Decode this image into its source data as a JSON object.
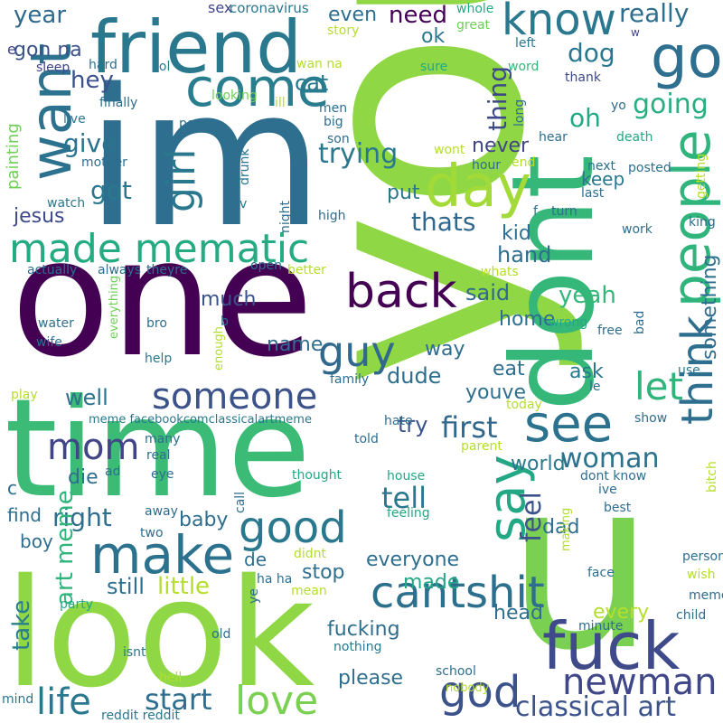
{
  "palette": {
    "dark_purple": "#440154",
    "purple": "#482878",
    "indigo": "#3e4989",
    "blue": "#31688e",
    "teal_blue": "#26828e",
    "teal": "#1f9e89",
    "green_teal": "#35b779",
    "green": "#6ece58",
    "lime": "#b5de2b",
    "yellow": "#fde725"
  },
  "words": [
    {
      "text": "youre",
      "color": "#8fd744"
    },
    {
      "text": "im",
      "color": "#2e6e8e"
    },
    {
      "text": "one",
      "color": "#440154"
    },
    {
      "text": "time",
      "color": "#3bbb75"
    },
    {
      "text": "look",
      "color": "#8fd744"
    },
    {
      "text": "dont",
      "color": "#35b779"
    },
    {
      "text": "u",
      "color": "#7ad151"
    },
    {
      "text": "friend",
      "color": "#2a788e"
    },
    {
      "text": "want",
      "color": "#2c728e"
    },
    {
      "text": "go",
      "color": "#2e6e8e"
    },
    {
      "text": "come",
      "color": "#287d8e"
    },
    {
      "text": "day",
      "color": "#a2da37"
    },
    {
      "text": "know",
      "color": "#2a788e"
    },
    {
      "text": "people",
      "color": "#2fb47c"
    },
    {
      "text": "made mematic",
      "color": "#25ab82"
    },
    {
      "text": "girl",
      "color": "#2a788e"
    },
    {
      "text": "back",
      "color": "#440154"
    },
    {
      "text": "see",
      "color": "#2c728e"
    },
    {
      "text": "think",
      "color": "#2e6e8e"
    },
    {
      "text": "say",
      "color": "#22a884"
    },
    {
      "text": "guy",
      "color": "#31688e"
    },
    {
      "text": "someone",
      "color": "#3b528b"
    },
    {
      "text": "mom",
      "color": "#414487"
    },
    {
      "text": "make",
      "color": "#2c728e"
    },
    {
      "text": "good",
      "color": "#2a788e"
    },
    {
      "text": "cantshit",
      "color": "#2d708e"
    },
    {
      "text": "fuck",
      "color": "#3e4a89"
    },
    {
      "text": "newman",
      "color": "#3f4788"
    },
    {
      "text": "god",
      "color": "#3b528b"
    },
    {
      "text": "life",
      "color": "#2a788e"
    },
    {
      "text": "love",
      "color": "#7ad151"
    },
    {
      "text": "start",
      "color": "#2e6e8e"
    },
    {
      "text": "classical art",
      "color": "#3b528b"
    },
    {
      "text": "let",
      "color": "#2fb47c"
    },
    {
      "text": "tell",
      "color": "#2a788e"
    },
    {
      "text": "right",
      "color": "#2e6e8e"
    },
    {
      "text": "first",
      "color": "#31688e"
    },
    {
      "text": "woman",
      "color": "#2c728e"
    },
    {
      "text": "feel",
      "color": "#3b528b"
    },
    {
      "text": "art meme",
      "color": "#2fb47c"
    },
    {
      "text": "take",
      "color": "#287d8e"
    },
    {
      "text": "got",
      "color": "#2a788e"
    },
    {
      "text": "give",
      "color": "#2c728e"
    },
    {
      "text": "trying",
      "color": "#2a788e"
    },
    {
      "text": "thats",
      "color": "#31688e"
    },
    {
      "text": "oh",
      "color": "#22a884"
    },
    {
      "text": "going",
      "color": "#29af7f"
    },
    {
      "text": "really",
      "color": "#2e6e8e"
    },
    {
      "text": "need",
      "color": "#440154"
    },
    {
      "text": "dog",
      "color": "#2a788e"
    },
    {
      "text": "thing",
      "color": "#3e4989"
    },
    {
      "text": "year",
      "color": "#31688e"
    },
    {
      "text": "hey",
      "color": "#3b528b"
    },
    {
      "text": "cat",
      "color": "#2a788e"
    },
    {
      "text": "gon na",
      "color": "#3b528b"
    },
    {
      "text": "well",
      "color": "#2c728e"
    },
    {
      "text": "dude",
      "color": "#2e6e8e"
    },
    {
      "text": "said",
      "color": "#31688e"
    },
    {
      "text": "yeah",
      "color": "#35b779"
    },
    {
      "text": "hand",
      "color": "#2e6e8e"
    },
    {
      "text": "much",
      "color": "#3b528b"
    },
    {
      "text": "jesus",
      "color": "#3e4989"
    },
    {
      "text": "name",
      "color": "#2e6e8e"
    },
    {
      "text": "way",
      "color": "#2e6e8e"
    },
    {
      "text": "eat",
      "color": "#2e6e8e"
    },
    {
      "text": "youve",
      "color": "#2e6e8e"
    },
    {
      "text": "ask",
      "color": "#2a788e"
    },
    {
      "text": "try",
      "color": "#3b528b"
    },
    {
      "text": "world",
      "color": "#2a788e"
    },
    {
      "text": "home",
      "color": "#2e6e8e"
    },
    {
      "text": "something",
      "color": "#2e6e8e"
    },
    {
      "text": "never",
      "color": "#414487"
    },
    {
      "text": "keep",
      "color": "#2a788e"
    },
    {
      "text": "kid",
      "color": "#2e6e8e"
    },
    {
      "text": "put",
      "color": "#2a788e"
    },
    {
      "text": "ok",
      "color": "#2a788e"
    },
    {
      "text": "even",
      "color": "#2e6e8e"
    },
    {
      "text": "die",
      "color": "#2e6e8e"
    },
    {
      "text": "baby",
      "color": "#2e6e8e"
    },
    {
      "text": "still",
      "color": "#2e6e8e"
    },
    {
      "text": "little",
      "color": "#b5de2b"
    },
    {
      "text": "stop",
      "color": "#2e6e8e"
    },
    {
      "text": "everyone",
      "color": "#2e6e8e"
    },
    {
      "text": "made",
      "color": "#22a884"
    },
    {
      "text": "dad",
      "color": "#2e6e8e"
    },
    {
      "text": "every",
      "color": "#b5de2b"
    },
    {
      "text": "head",
      "color": "#2e6e8e"
    },
    {
      "text": "fucking",
      "color": "#2e6e8e"
    },
    {
      "text": "please",
      "color": "#2e6e8e"
    },
    {
      "text": "find",
      "color": "#2e6e8e"
    },
    {
      "text": "boy",
      "color": "#2e6e8e"
    },
    {
      "text": "c",
      "color": "#2e6e8e"
    },
    {
      "text": "de",
      "color": "#2e6e8e"
    },
    {
      "text": "painting",
      "color": "#6ece58"
    },
    {
      "text": "sex",
      "color": "#414487"
    },
    {
      "text": "coronavirus",
      "color": "#2a788e"
    },
    {
      "text": "whole",
      "color": "#22a884"
    },
    {
      "text": "great",
      "color": "#6ece58"
    },
    {
      "text": "story",
      "color": "#b5de2b"
    },
    {
      "text": "wan na",
      "color": "#b5de2b"
    },
    {
      "text": "left",
      "color": "#2a788e"
    },
    {
      "text": "word",
      "color": "#35b779"
    },
    {
      "text": "sure",
      "color": "#22a884"
    },
    {
      "text": "thank",
      "color": "#3e4989"
    },
    {
      "text": "w",
      "color": "#414487"
    },
    {
      "text": "e",
      "color": "#414487"
    },
    {
      "text": "sleep",
      "color": "#414487"
    },
    {
      "text": "hard",
      "color": "#2e6e8e"
    },
    {
      "text": "lol",
      "color": "#2a788e"
    },
    {
      "text": "looking",
      "color": "#6ece58"
    },
    {
      "text": "finally",
      "color": "#2e6e8e"
    },
    {
      "text": "ill",
      "color": "#b5de2b"
    },
    {
      "text": "men",
      "color": "#2e6e8e"
    },
    {
      "text": "big",
      "color": "#2e6e8e"
    },
    {
      "text": "son",
      "color": "#2e6e8e"
    },
    {
      "text": "long",
      "color": "#2e6e8e"
    },
    {
      "text": "yo",
      "color": "#2e6e8e"
    },
    {
      "text": "live",
      "color": "#2a788e"
    },
    {
      "text": "post",
      "color": "#2e6e8e"
    },
    {
      "text": "hear",
      "color": "#2e6e8e"
    },
    {
      "text": "death",
      "color": "#22a884"
    },
    {
      "text": "wont",
      "color": "#b5de2b"
    },
    {
      "text": "hour",
      "color": "#2e6e8e"
    },
    {
      "text": "end",
      "color": "#b5de2b"
    },
    {
      "text": "next",
      "color": "#2e6e8e"
    },
    {
      "text": "posted",
      "color": "#2e6e8e"
    },
    {
      "text": "mother",
      "color": "#2e6e8e"
    },
    {
      "text": "drunk",
      "color": "#2a788e"
    },
    {
      "text": "watch",
      "color": "#2a788e"
    },
    {
      "text": "last",
      "color": "#2e6e8e"
    },
    {
      "text": "getting",
      "color": "#b5de2b"
    },
    {
      "text": "night",
      "color": "#2e6e8e"
    },
    {
      "text": "v",
      "color": "#2a788e"
    },
    {
      "text": "high",
      "color": "#2e6e8e"
    },
    {
      "text": "f",
      "color": "#2e6e8e"
    },
    {
      "text": "turn",
      "color": "#2e6e8e"
    },
    {
      "text": "work",
      "color": "#2e6e8e"
    },
    {
      "text": "king",
      "color": "#2e6e8e"
    },
    {
      "text": "actually",
      "color": "#2e6e8e"
    },
    {
      "text": "always",
      "color": "#2e6e8e"
    },
    {
      "text": "theyre",
      "color": "#2e6e8e"
    },
    {
      "text": "open",
      "color": "#2e6e8e"
    },
    {
      "text": "better",
      "color": "#b5de2b"
    },
    {
      "text": "whats",
      "color": "#b5de2b"
    },
    {
      "text": "wrong",
      "color": "#22a884"
    },
    {
      "text": "free",
      "color": "#2e6e8e"
    },
    {
      "text": "bad",
      "color": "#2e6e8e"
    },
    {
      "text": "b",
      "color": "#2e6e8e"
    },
    {
      "text": "water",
      "color": "#2e6e8e"
    },
    {
      "text": "bro",
      "color": "#2e6e8e"
    },
    {
      "text": "wife",
      "color": "#2e6e8e"
    },
    {
      "text": "everything",
      "color": "#6ece58"
    },
    {
      "text": "help",
      "color": "#2a788e"
    },
    {
      "text": "enough",
      "color": "#b5de2b"
    },
    {
      "text": "family",
      "color": "#2e6e8e"
    },
    {
      "text": "use",
      "color": "#2a788e"
    },
    {
      "text": "play",
      "color": "#b5de2b"
    },
    {
      "text": "today",
      "color": "#b5de2b"
    },
    {
      "text": "le",
      "color": "#2e6e8e"
    },
    {
      "text": "meme facebookcomclassicalartmeme",
      "color": "#2a788e"
    },
    {
      "text": "hate",
      "color": "#2e6e8e"
    },
    {
      "text": "show",
      "color": "#2e6e8e"
    },
    {
      "text": "told",
      "color": "#2e6e8e"
    },
    {
      "text": "parent",
      "color": "#b5de2b"
    },
    {
      "text": "many",
      "color": "#2e6e8e"
    },
    {
      "text": "real",
      "color": "#2e6e8e"
    },
    {
      "text": "eye",
      "color": "#2e6e8e"
    },
    {
      "text": "ad",
      "color": "#2e6e8e"
    },
    {
      "text": "thought",
      "color": "#22a884"
    },
    {
      "text": "house",
      "color": "#22a884"
    },
    {
      "text": "dont know",
      "color": "#2e6e8e"
    },
    {
      "text": "ive",
      "color": "#2e6e8e"
    },
    {
      "text": "best",
      "color": "#2e6e8e"
    },
    {
      "text": "bitch",
      "color": "#b5de2b"
    },
    {
      "text": "feeling",
      "color": "#22a884"
    },
    {
      "text": "making",
      "color": "#b5de2b"
    },
    {
      "text": "call",
      "color": "#2e6e8e"
    },
    {
      "text": "two",
      "color": "#2e6e8e"
    },
    {
      "text": "away",
      "color": "#2e6e8e"
    },
    {
      "text": "person",
      "color": "#2e6e8e"
    },
    {
      "text": "face",
      "color": "#2e6e8e"
    },
    {
      "text": "wish",
      "color": "#b5de2b"
    },
    {
      "text": "ha ha",
      "color": "#2e6e8e"
    },
    {
      "text": "didnt",
      "color": "#b5de2b"
    },
    {
      "text": "mean",
      "color": "#b5de2b"
    },
    {
      "text": "meme",
      "color": "#2e6e8e"
    },
    {
      "text": "party",
      "color": "#22a884"
    },
    {
      "text": "minute",
      "color": "#2e6e8e"
    },
    {
      "text": "child",
      "color": "#2e6e8e"
    },
    {
      "text": "ye",
      "color": "#2e6e8e"
    },
    {
      "text": "old",
      "color": "#2e6e8e"
    },
    {
      "text": "isnt",
      "color": "#2a788e"
    },
    {
      "text": "nothing",
      "color": "#2a788e"
    },
    {
      "text": "school",
      "color": "#2e6e8e"
    },
    {
      "text": "hell",
      "color": "#b5de2b"
    },
    {
      "text": "mind",
      "color": "#2a788e"
    },
    {
      "text": "reddit reddit",
      "color": "#2a788e"
    },
    {
      "text": "nobody",
      "color": "#b5de2b"
    }
  ]
}
